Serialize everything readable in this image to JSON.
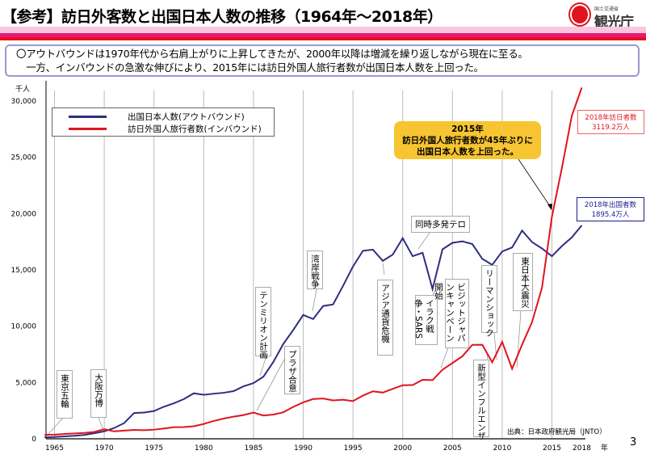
{
  "title": "【参考】訪日外客数と出国日本人数の推移（1964年～2018年）",
  "logo": {
    "small": "国土交通省",
    "big": "観光庁"
  },
  "summary": [
    "〇アウトバウンドは1970年代から右肩上がりに上昇してきたが、2000年以降は増減を繰り返しながら現在に至る。",
    "　一方、インバウンドの急激な伸びにより、2015年には訪日外国人旅行者数が出国日本人数を上回った。"
  ],
  "chart_data": {
    "type": "line",
    "yunit": "千人",
    "xunit": "年",
    "ylim": [
      0,
      30000
    ],
    "yticks": [
      "0",
      "5,000",
      "10,000",
      "15,000",
      "20,000",
      "25,000",
      "30,000"
    ],
    "xticks": [
      "1965",
      "1970",
      "1975",
      "1980",
      "1985",
      "1990",
      "1995",
      "2000",
      "2005",
      "2010",
      "2015",
      "2018"
    ],
    "grid": "vertical",
    "legend_position": "top-left",
    "x": [
      1964,
      1965,
      1966,
      1967,
      1968,
      1969,
      1970,
      1971,
      1972,
      1973,
      1974,
      1975,
      1976,
      1977,
      1978,
      1979,
      1980,
      1981,
      1982,
      1983,
      1984,
      1985,
      1986,
      1987,
      1988,
      1989,
      1990,
      1991,
      1992,
      1993,
      1994,
      1995,
      1996,
      1997,
      1998,
      1999,
      2000,
      2001,
      2002,
      2003,
      2004,
      2005,
      2006,
      2007,
      2008,
      2009,
      2010,
      2011,
      2012,
      2013,
      2014,
      2015,
      2016,
      2017,
      2018
    ],
    "series": [
      {
        "name": "出国日本人数(アウトバウンド)",
        "color": "#2e2e80",
        "values": [
          128,
          159,
          212,
          268,
          344,
          493,
          663,
          961,
          1392,
          2289,
          2336,
          2466,
          2853,
          3151,
          3525,
          4039,
          3909,
          4006,
          4086,
          4232,
          4659,
          4948,
          5516,
          6829,
          8427,
          9663,
          10997,
          10634,
          11791,
          11934,
          13579,
          15298,
          16695,
          16803,
          15806,
          16358,
          17819,
          16216,
          16523,
          13296,
          16831,
          17404,
          17535,
          17295,
          15987,
          15446,
          16637,
          16994,
          18491,
          17473,
          16903,
          16214,
          17116,
          17889,
          18954
        ]
      },
      {
        "name": "訪日外国人旅行者数(インバウンド)",
        "color": "#e0141e",
        "values": [
          353,
          367,
          433,
          477,
          519,
          609,
          854,
          660,
          724,
          785,
          764,
          812,
          915,
          1028,
          1039,
          1113,
          1317,
          1583,
          1793,
          1968,
          2110,
          2327,
          2062,
          2155,
          2355,
          2835,
          3236,
          3533,
          3582,
          3410,
          3468,
          3345,
          3837,
          4218,
          4106,
          4438,
          4757,
          4772,
          5239,
          5212,
          6138,
          6728,
          7334,
          8347,
          8351,
          6790,
          8611,
          6219,
          8358,
          10364,
          13413,
          19737,
          24039,
          28691,
          31192
        ]
      }
    ],
    "annotations": {
      "tokyo": "東京五輪",
      "osaka": "大阪万博",
      "tenmillion": "テンミリオン計画",
      "plaza": "プラザ合意",
      "gulf": "湾岸戦争",
      "asia": "アジア通貨危機",
      "terror": "同時多発テロ",
      "iraq": "イラク戦争・SARS",
      "vj": "ビジットジャパンキャンペーン開始",
      "flu": "新型インフルエンザ",
      "lehman": "リーマンショック",
      "quake": "東日本大震災",
      "highlight": [
        "2015年",
        "訪日外国人旅行者数が45年ぶりに",
        "出国日本人数を上回った。"
      ],
      "inbound2018": [
        "2018年訪日者数",
        "3119.2万人"
      ],
      "outbound2018": [
        "2018年出国者数",
        "1895.4万人"
      ]
    },
    "source": "出典：日本政府観光局（JNTO）"
  },
  "page_number": "3"
}
